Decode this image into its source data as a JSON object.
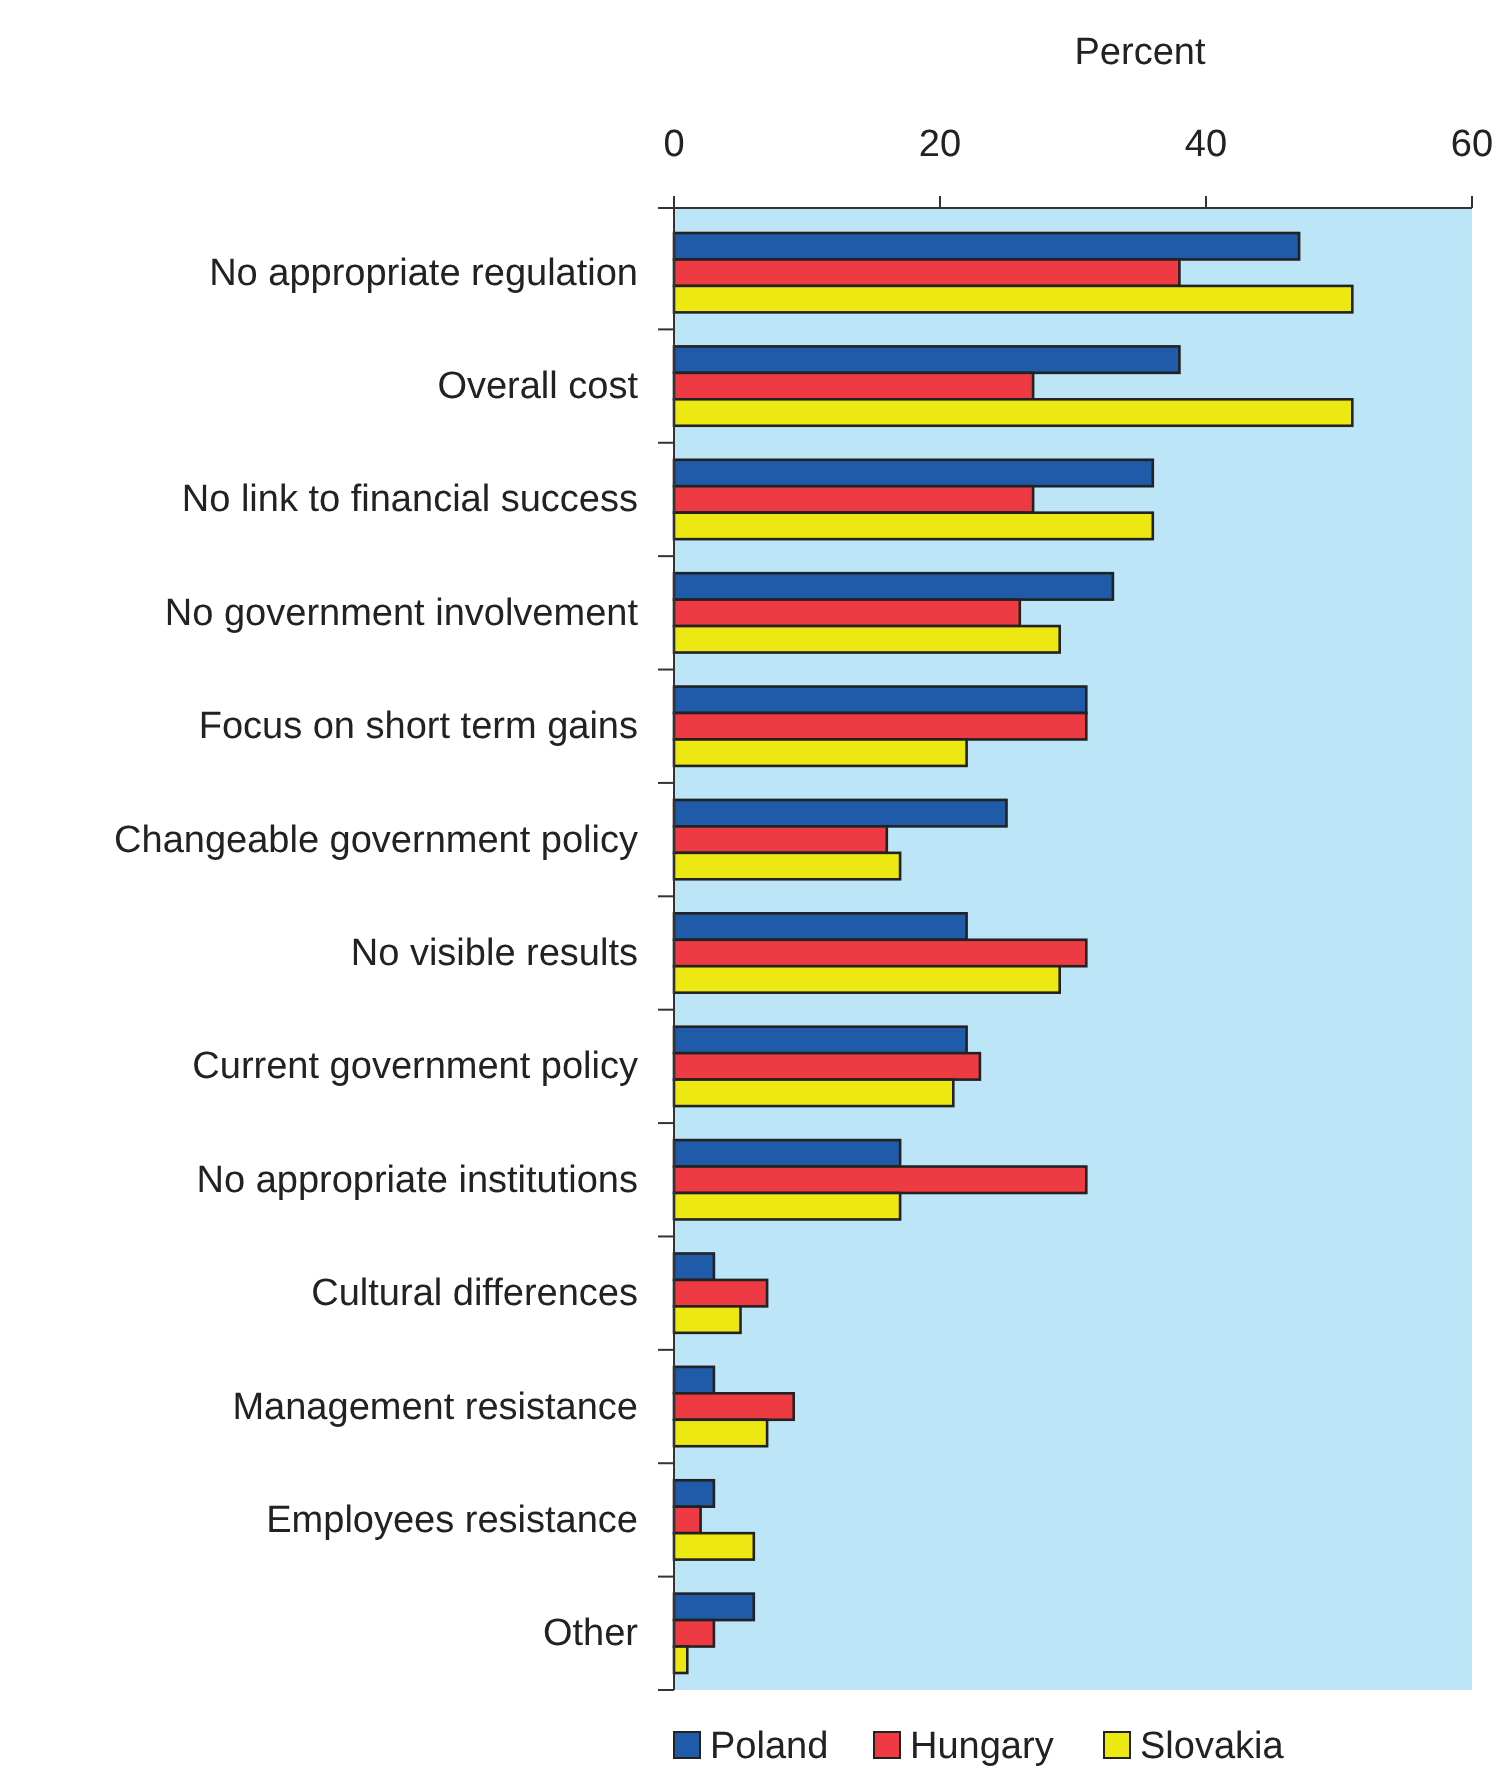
{
  "chart_data": {
    "type": "bar",
    "orientation": "horizontal",
    "xlabel": "Percent",
    "categories": [
      "No appropriate regulation",
      "Overall cost",
      "No link to financial success",
      "No government involvement",
      "Focus on short term gains",
      "Changeable government policy",
      "No visible results",
      "Current government policy",
      "No appropriate institutions",
      "Cultural differences",
      "Management resistance",
      "Employees resistance",
      "Other"
    ],
    "series": [
      {
        "name": "Poland",
        "color": "#1f5ba8",
        "values": [
          47,
          38,
          36,
          33,
          31,
          25,
          22,
          22,
          17,
          3,
          3,
          3,
          6
        ]
      },
      {
        "name": "Hungary",
        "color": "#ee3a43",
        "values": [
          38,
          27,
          27,
          26,
          31,
          16,
          31,
          23,
          31,
          7,
          9,
          2,
          3
        ]
      },
      {
        "name": "Slovakia",
        "color": "#ede712",
        "values": [
          51,
          51,
          36,
          29,
          22,
          17,
          29,
          21,
          17,
          5,
          7,
          6,
          1
        ]
      }
    ],
    "xlim": [
      0,
      60
    ],
    "xticks": [
      0,
      20,
      40,
      60
    ],
    "grid": false,
    "legend": "bottom"
  }
}
